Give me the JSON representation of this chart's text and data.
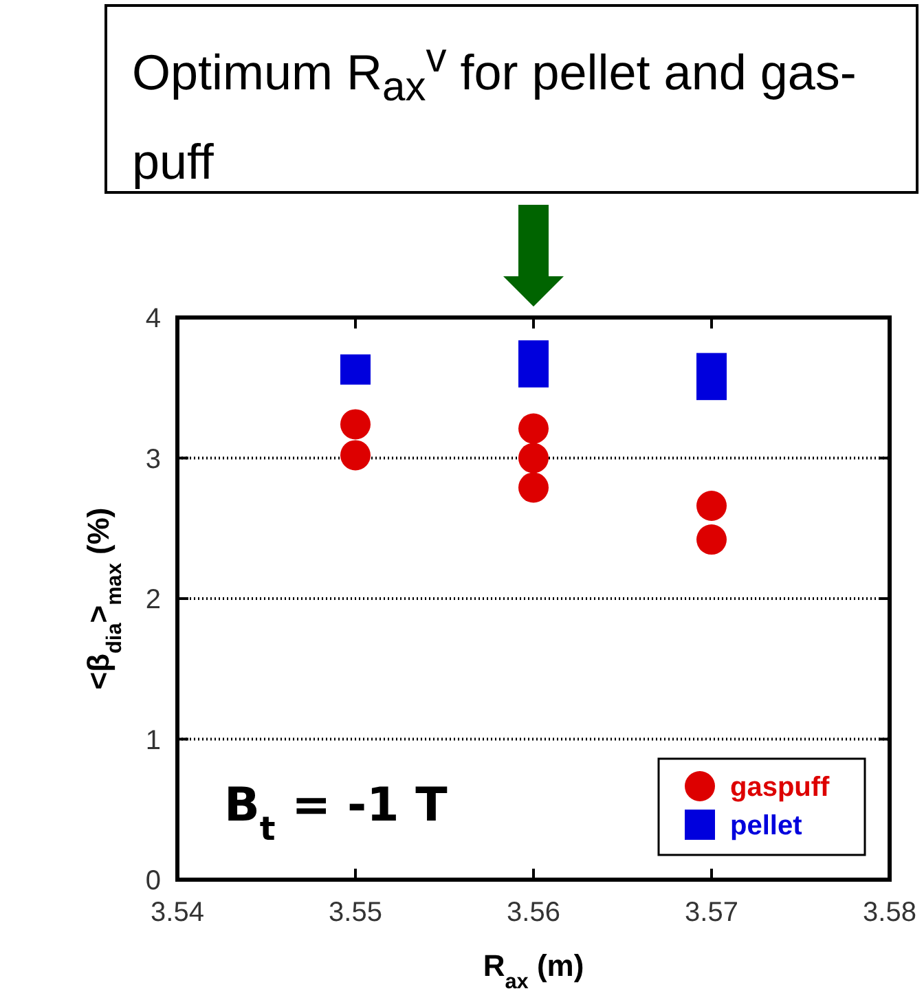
{
  "chart_data": {
    "type": "scatter",
    "title": "Optimum R$_{ax}$$^{v}$ for pellet and gas-puff",
    "xlabel": "R$_{ax}$ (m)",
    "ylabel": "<β$_{dia}$>$_{max}$ (%)",
    "annotations": [
      "B$_{t}$ = -1 T"
    ],
    "xlim": [
      3.54,
      3.58
    ],
    "xticks": [
      3.54,
      3.55,
      3.56,
      3.57,
      3.58
    ],
    "ylim": [
      0,
      4
    ],
    "yticks": [
      0,
      1,
      2,
      3,
      4
    ],
    "grid": "y",
    "legend": "bottom right",
    "series": [
      {
        "name": "gaspuff",
        "color": "#dd0000",
        "marker": "circle",
        "x": [
          3.55,
          3.55,
          3.56,
          3.56,
          3.56,
          3.57,
          3.57
        ],
        "values": [
          3.02,
          3.24,
          2.79,
          3.0,
          3.21,
          2.42,
          2.66
        ]
      },
      {
        "name": "pellet",
        "color": "#0000dd",
        "marker": "square",
        "x": [
          3.55,
          3.56,
          3.56,
          3.57,
          3.57
        ],
        "values": [
          3.63,
          3.61,
          3.73,
          3.52,
          3.64
        ]
      }
    ]
  }
}
